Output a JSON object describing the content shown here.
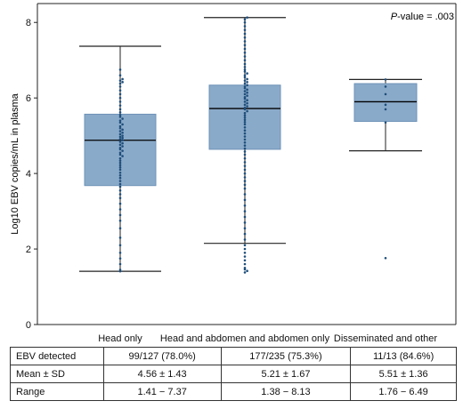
{
  "chart_data": {
    "type": "box",
    "ylabel": "Log10 EBV copies/mL in plasma",
    "ylim": [
      0,
      8.5
    ],
    "yticks": [
      0,
      2,
      4,
      6,
      8
    ],
    "grid": false,
    "annotation": {
      "italic": "P",
      "rest": "-value = .003"
    },
    "colors": {
      "box": "#8aaac9",
      "box_edge": "#6f93b8",
      "point": "#1f4e7a",
      "line": "#222222"
    },
    "groups": [
      {
        "name": "Head only",
        "whisker_low": 1.41,
        "q1": 3.68,
        "median": 4.88,
        "q3": 5.57,
        "whisker_high": 7.37,
        "points": [
          1.41,
          1.45,
          1.6,
          1.75,
          1.9,
          2.1,
          2.3,
          2.55,
          2.75,
          2.9,
          3.05,
          3.2,
          3.35,
          3.45,
          3.55,
          3.65,
          3.72,
          3.8,
          3.88,
          3.95,
          4.02,
          4.1,
          4.16,
          4.22,
          4.28,
          4.34,
          4.4,
          4.46,
          4.5,
          4.55,
          4.6,
          4.64,
          4.68,
          4.72,
          4.76,
          4.8,
          4.84,
          4.88,
          4.91,
          4.94,
          4.97,
          5.0,
          5.04,
          5.08,
          5.12,
          5.16,
          5.2,
          5.25,
          5.3,
          5.35,
          5.4,
          5.45,
          5.5,
          5.55,
          5.62,
          5.7,
          5.8,
          5.9,
          6.0,
          6.1,
          6.2,
          6.3,
          6.38,
          6.42,
          6.46,
          6.5,
          6.6,
          6.75
        ]
      },
      {
        "name": "Head and abdomen and abdomen only",
        "whisker_low": 2.15,
        "q1": 4.64,
        "median": 5.72,
        "q3": 6.34,
        "whisker_high": 8.13,
        "points": [
          1.38,
          1.42,
          1.46,
          1.5,
          1.6,
          1.7,
          1.8,
          1.9,
          2.0,
          2.1,
          2.25,
          2.4,
          2.55,
          2.7,
          2.85,
          3.0,
          3.15,
          3.3,
          3.45,
          3.6,
          3.7,
          3.8,
          3.9,
          4.0,
          4.1,
          4.2,
          4.3,
          4.4,
          4.5,
          4.58,
          4.66,
          4.74,
          4.82,
          4.9,
          4.98,
          5.06,
          5.14,
          5.22,
          5.3,
          5.36,
          5.42,
          5.48,
          5.54,
          5.6,
          5.65,
          5.7,
          5.74,
          5.78,
          5.82,
          5.86,
          5.9,
          5.94,
          5.98,
          6.02,
          6.06,
          6.1,
          6.14,
          6.18,
          6.22,
          6.26,
          6.3,
          6.34,
          6.38,
          6.42,
          6.46,
          6.5,
          6.55,
          6.6,
          6.65,
          6.7,
          6.75,
          6.82,
          6.9,
          7.0,
          7.1,
          7.2,
          7.3,
          7.4,
          7.5,
          7.6,
          7.7,
          7.8,
          7.9,
          8.0,
          8.08,
          8.13
        ]
      },
      {
        "name": "Disseminated and other",
        "whisker_low": 4.6,
        "q1": 5.38,
        "median": 5.9,
        "q3": 6.38,
        "whisker_high": 6.49,
        "points": [
          1.76,
          5.35,
          5.7,
          5.82,
          6.1,
          6.3,
          6.49
        ]
      }
    ]
  },
  "table": {
    "rows": [
      {
        "label": "EBV detected",
        "values": [
          "99/127 (78.0%)",
          "177/235 (75.3%)",
          "11/13 (84.6%)"
        ]
      },
      {
        "label": "Mean ± SD",
        "values": [
          "4.56 ± 1.43",
          "5.21 ± 1.67",
          "5.51 ± 1.36"
        ]
      },
      {
        "label": "Range",
        "values": [
          "1.41 − 7.37",
          "1.38 − 8.13",
          "1.76 − 6.49"
        ]
      }
    ]
  }
}
